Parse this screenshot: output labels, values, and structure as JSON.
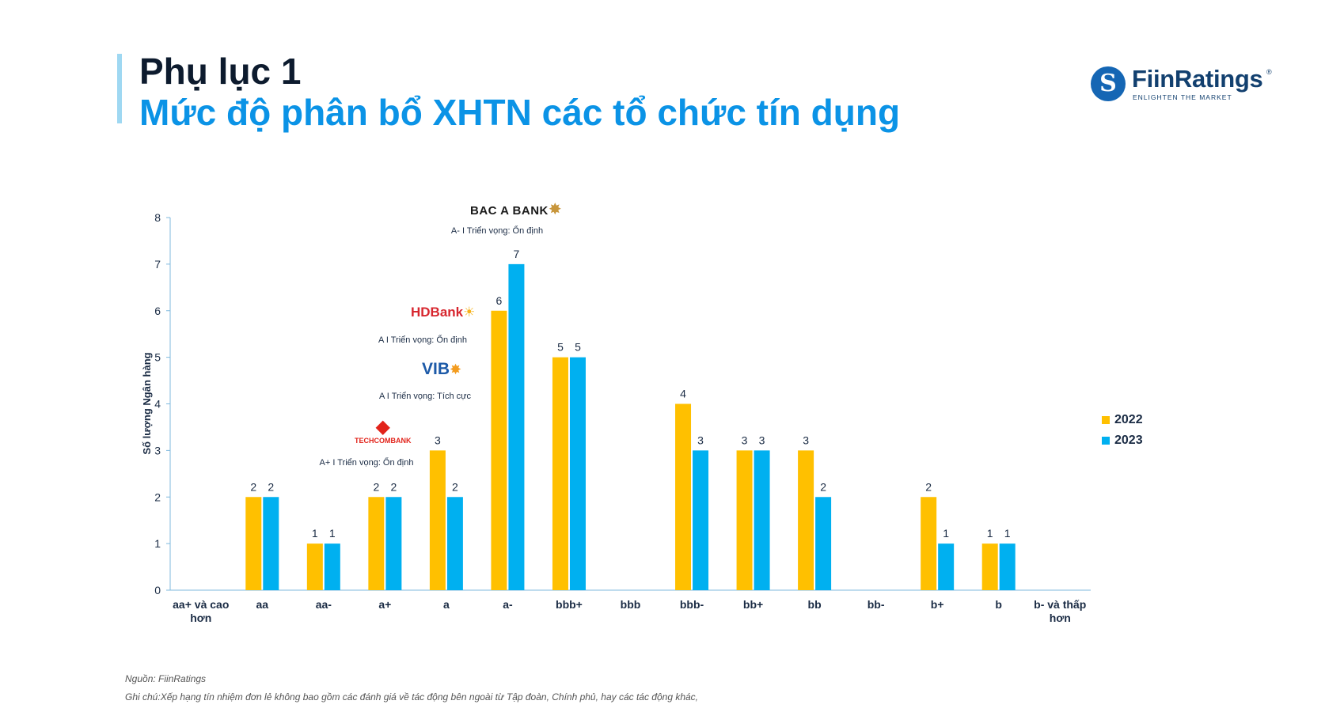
{
  "header": {
    "line1": "Phụ lục 1",
    "line2": "Mức độ phân bổ XHTN các tổ chức tín dụng"
  },
  "brand": {
    "name": "FiinRatings",
    "registered": "®",
    "tagline": "ENLIGHTEN THE MARKET"
  },
  "colors": {
    "series_2022": "#ffc000",
    "series_2023": "#00b0f0",
    "axis": "#7fb9de",
    "title_accent": "#0b93e6"
  },
  "chart_data": {
    "type": "bar",
    "ylabel": "Số lượng Ngân hàng",
    "ylim": [
      0,
      8
    ],
    "yticks": [
      0,
      1,
      2,
      3,
      4,
      5,
      6,
      7,
      8
    ],
    "grid": false,
    "legend_position": "right",
    "categories": [
      "aa+ và cao hơn",
      "aa",
      "aa-",
      "a+",
      "a",
      "a-",
      "bbb+",
      "bbb",
      "bbb-",
      "bb+",
      "bb",
      "bb-",
      "b+",
      "b",
      "b- và thấp hơn"
    ],
    "series": [
      {
        "name": "2022",
        "values": [
          0,
          2,
          1,
          2,
          3,
          6,
          5,
          0,
          4,
          3,
          3,
          0,
          2,
          1,
          0
        ]
      },
      {
        "name": "2023",
        "values": [
          0,
          2,
          1,
          2,
          2,
          7,
          5,
          0,
          3,
          3,
          2,
          0,
          1,
          1,
          0
        ]
      }
    ],
    "annotations": [
      {
        "bank": "BAC A BANK",
        "note": "A- I Triển vọng: Ổn định",
        "icon": "star-burst-icon"
      },
      {
        "bank": "HDBank",
        "note": "A I Triển vọng: Ổn định",
        "icon": "sun-icon"
      },
      {
        "bank": "VIB",
        "note": "A I Triển vọng: Tích cực",
        "icon": "star-burst-icon"
      },
      {
        "bank": "TECHCOMBANK",
        "note": "A+ I Triển vọng: Ổn định",
        "icon": "diamond-icon"
      }
    ]
  },
  "footer": {
    "source": "Nguồn: FiinRatings",
    "note": "Ghi chú:Xếp hạng tín nhiệm đơn lẻ không bao gồm các đánh giá về tác động bên ngoài từ Tập đoàn, Chính phủ, hay các tác động khác,"
  }
}
